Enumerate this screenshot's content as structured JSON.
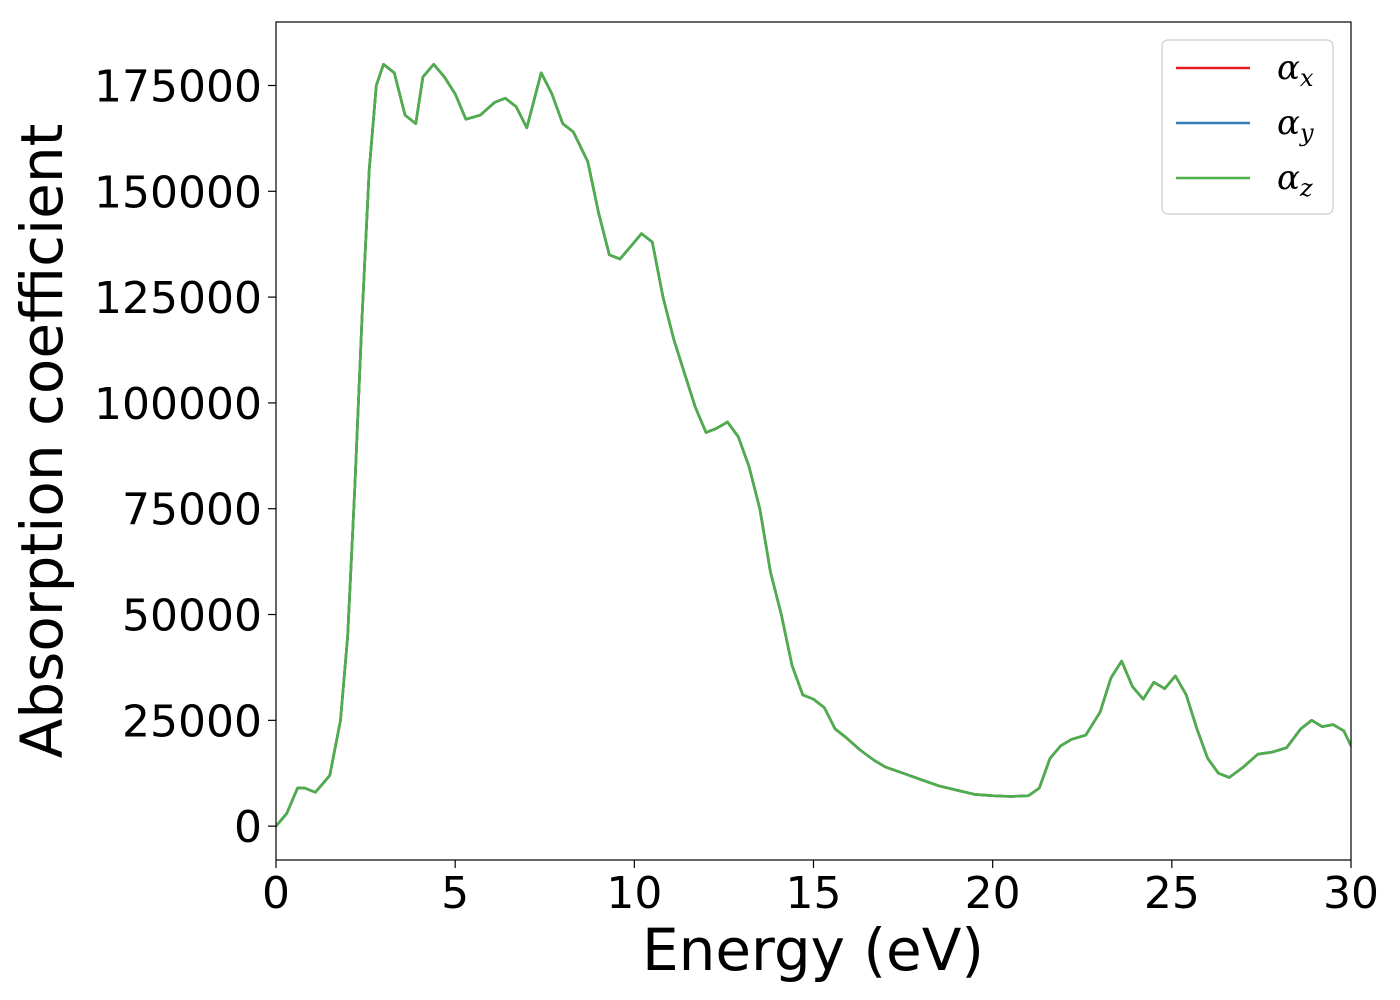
{
  "chart_data": {
    "type": "line",
    "title": "",
    "xlabel": "Energy (eV)",
    "ylabel": "Absorption coefficient",
    "xlim": [
      0,
      30
    ],
    "ylim": [
      -8000,
      190000
    ],
    "xticks": [
      0,
      5,
      10,
      15,
      20,
      25,
      30
    ],
    "xtick_labels": [
      "0",
      "5",
      "10",
      "15",
      "20",
      "25",
      "30"
    ],
    "yticks": [
      0,
      25000,
      50000,
      75000,
      100000,
      125000,
      150000,
      175000
    ],
    "ytick_labels": [
      "0",
      "25000",
      "50000",
      "75000",
      "100000",
      "125000",
      "150000",
      "175000"
    ],
    "grid": false,
    "legend_position": "top-right",
    "x": [
      0,
      0.3,
      0.6,
      0.8,
      1.1,
      1.5,
      1.8,
      2.0,
      2.2,
      2.4,
      2.6,
      2.8,
      3.0,
      3.3,
      3.6,
      3.9,
      4.1,
      4.4,
      4.7,
      5.0,
      5.3,
      5.7,
      6.1,
      6.4,
      6.7,
      7.0,
      7.4,
      7.7,
      8.0,
      8.3,
      8.7,
      9.0,
      9.3,
      9.6,
      9.9,
      10.2,
      10.5,
      10.8,
      11.1,
      11.4,
      11.7,
      12.0,
      12.3,
      12.6,
      12.9,
      13.2,
      13.5,
      13.8,
      14.1,
      14.4,
      14.7,
      15.0,
      15.3,
      15.6,
      15.9,
      16.3,
      16.7,
      17.0,
      17.5,
      18.0,
      18.5,
      19.0,
      19.5,
      20.0,
      20.5,
      21.0,
      21.3,
      21.6,
      21.9,
      22.2,
      22.6,
      23.0,
      23.3,
      23.6,
      23.9,
      24.2,
      24.5,
      24.8,
      25.1,
      25.4,
      25.7,
      26.0,
      26.3,
      26.6,
      27.0,
      27.4,
      27.8,
      28.2,
      28.6,
      28.9,
      29.2,
      29.5,
      29.8,
      30.0
    ],
    "series": [
      {
        "name": "αx",
        "label_base": "α",
        "label_sub": "x",
        "color": "#e41a1c",
        "values": [
          0,
          3000,
          9000,
          9000,
          8000,
          12000,
          25000,
          45000,
          80000,
          120000,
          155000,
          175000,
          180000,
          178000,
          168000,
          166000,
          177000,
          180000,
          177000,
          173000,
          167000,
          168000,
          171000,
          172000,
          170000,
          165000,
          178000,
          173000,
          166000,
          164000,
          157000,
          145000,
          135000,
          134000,
          137000,
          140000,
          138000,
          125000,
          115000,
          107000,
          99000,
          93000,
          94000,
          95500,
          92000,
          85000,
          75000,
          60000,
          50000,
          38000,
          31000,
          30000,
          28000,
          23000,
          21000,
          18000,
          15500,
          14000,
          12500,
          11000,
          9500,
          8500,
          7500,
          7200,
          7000,
          7200,
          9000,
          16000,
          19000,
          20500,
          21500,
          27000,
          35000,
          39000,
          33000,
          30000,
          34000,
          32500,
          35500,
          31000,
          23000,
          16000,
          12500,
          11500,
          14000,
          17000,
          17500,
          18500,
          23000,
          25000,
          23500,
          24000,
          22500,
          19000
        ]
      },
      {
        "name": "αy",
        "label_base": "α",
        "label_sub": "y",
        "color": "#377eb8",
        "values": [
          0,
          3000,
          9000,
          9000,
          8000,
          12000,
          25000,
          45000,
          80000,
          120000,
          155000,
          175000,
          180000,
          178000,
          168000,
          166000,
          177000,
          180000,
          177000,
          173000,
          167000,
          168000,
          171000,
          172000,
          170000,
          165000,
          178000,
          173000,
          166000,
          164000,
          157000,
          145000,
          135000,
          134000,
          137000,
          140000,
          138000,
          125000,
          115000,
          107000,
          99000,
          93000,
          94000,
          95500,
          92000,
          85000,
          75000,
          60000,
          50000,
          38000,
          31000,
          30000,
          28000,
          23000,
          21000,
          18000,
          15500,
          14000,
          12500,
          11000,
          9500,
          8500,
          7500,
          7200,
          7000,
          7200,
          9000,
          16000,
          19000,
          20500,
          21500,
          27000,
          35000,
          39000,
          33000,
          30000,
          34000,
          32500,
          35500,
          31000,
          23000,
          16000,
          12500,
          11500,
          14000,
          17000,
          17500,
          18500,
          23000,
          25000,
          23500,
          24000,
          22500,
          19000
        ]
      },
      {
        "name": "αz",
        "label_base": "α",
        "label_sub": "z",
        "color": "#4daf4a",
        "values": [
          0,
          3000,
          9000,
          9000,
          8000,
          12000,
          25000,
          45000,
          80000,
          120000,
          155000,
          175000,
          180000,
          178000,
          168000,
          166000,
          177000,
          180000,
          177000,
          173000,
          167000,
          168000,
          171000,
          172000,
          170000,
          165000,
          178000,
          173000,
          166000,
          164000,
          157000,
          145000,
          135000,
          134000,
          137000,
          140000,
          138000,
          125000,
          115000,
          107000,
          99000,
          93000,
          94000,
          95500,
          92000,
          85000,
          75000,
          60000,
          50000,
          38000,
          31000,
          30000,
          28000,
          23000,
          21000,
          18000,
          15500,
          14000,
          12500,
          11000,
          9500,
          8500,
          7500,
          7200,
          7000,
          7200,
          9000,
          16000,
          19000,
          20500,
          21500,
          27000,
          35000,
          39000,
          33000,
          30000,
          34000,
          32500,
          35500,
          31000,
          23000,
          16000,
          12500,
          11500,
          14000,
          17000,
          17500,
          18500,
          23000,
          25000,
          23500,
          24000,
          22500,
          19000
        ]
      }
    ]
  }
}
